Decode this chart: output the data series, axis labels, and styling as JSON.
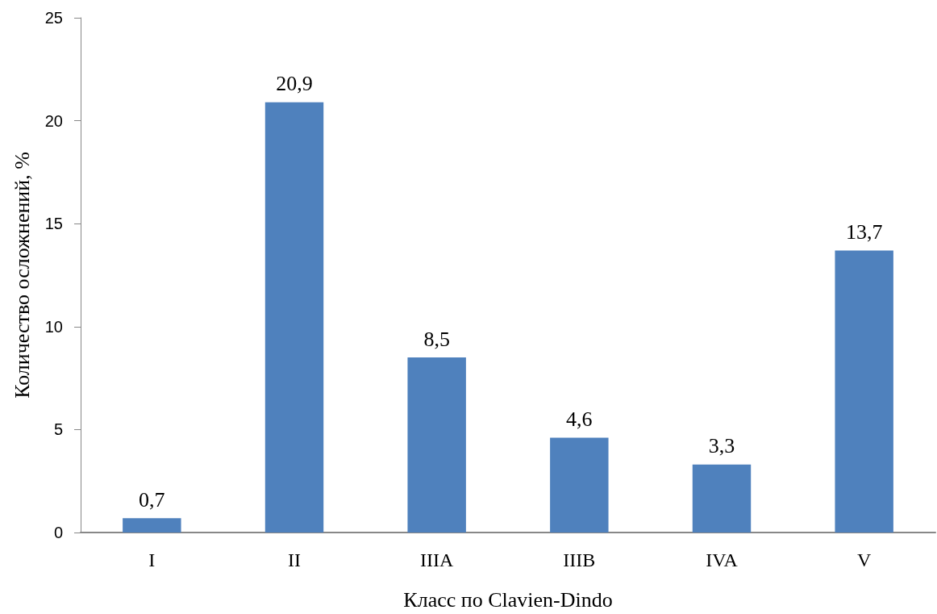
{
  "chart_data": {
    "type": "bar",
    "xlabel": "Класс по Clavien-Dindo",
    "ylabel": "Количество осложнений, %",
    "categories": [
      "I",
      "II",
      "IIIA",
      "IIIB",
      "IVA",
      "V"
    ],
    "values": [
      0.7,
      20.9,
      8.5,
      4.6,
      3.3,
      13.7
    ],
    "value_labels": [
      "0,7",
      "20,9",
      "8,5",
      "4,6",
      "3,3",
      "13,7"
    ],
    "color": "#4f81bd",
    "ylim": [
      0,
      25
    ],
    "yticks": [
      0,
      5,
      10,
      15,
      20,
      25
    ],
    "grid": false
  }
}
